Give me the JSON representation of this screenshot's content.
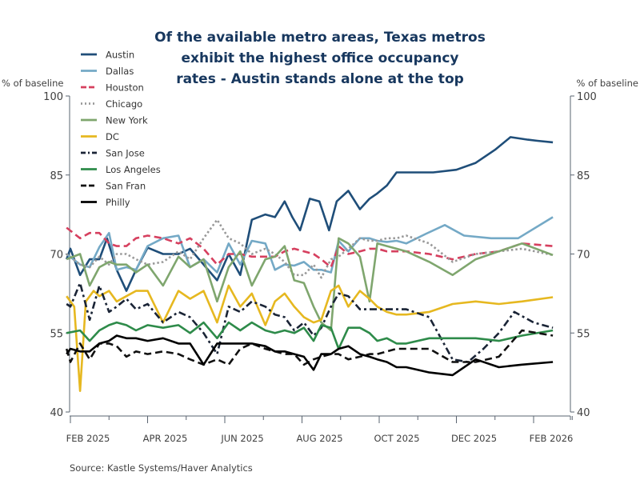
{
  "chart_data": {
    "type": "line",
    "title": [
      "Of the available metro areas, Texas metros",
      "exhibit the highest office occupancy",
      "rates - Austin stands alone at the top"
    ],
    "ylabel_left": "% of baseline",
    "ylabel_right": "% of baseline",
    "ylim": [
      40,
      100
    ],
    "yticks": [
      40,
      55,
      70,
      85,
      100
    ],
    "ytick_labels": [
      "40",
      "55",
      "70",
      "85",
      "100"
    ],
    "x_range": [
      0,
      13.5
    ],
    "xtick_labels": [
      {
        "label": "FEB 2025",
        "x": 0
      },
      {
        "label": "APR 2025",
        "x": 2
      },
      {
        "label": "JUN 2025",
        "x": 4
      },
      {
        "label": "AUG 2025",
        "x": 6
      },
      {
        "label": "OCT 2025",
        "x": 8
      },
      {
        "label": "DEC 2025",
        "x": 10
      },
      {
        "label": "FEB 2026",
        "x": 12
      }
    ],
    "minor_ticks": [
      0,
      1,
      2,
      3,
      4,
      5,
      6,
      7,
      8,
      9,
      10,
      11,
      12,
      13
    ],
    "source": "Source:  Kastle Systems/Haver Analytics",
    "grid": false,
    "legend_position": "top-left",
    "series": [
      {
        "name": "Austin",
        "color": "#1f4e79",
        "dash": "solid",
        "x": [
          -0.1,
          0.0,
          0.25,
          0.5,
          0.75,
          0.95,
          1.2,
          1.45,
          1.7,
          2.0,
          2.4,
          2.8,
          3.1,
          3.45,
          3.8,
          4.1,
          4.4,
          4.7,
          5.05,
          5.3,
          5.55,
          5.75,
          5.95,
          6.2,
          6.45,
          6.7,
          6.9,
          7.2,
          7.5,
          7.75,
          7.95,
          8.2,
          8.45,
          8.7,
          9.4,
          10.0,
          10.5,
          11.0,
          11.4,
          11.85,
          12.1,
          12.5
        ],
        "y": [
          69,
          71,
          66,
          69,
          69,
          73,
          67,
          63,
          67,
          71.2,
          70,
          70,
          71,
          68,
          65,
          70,
          66,
          76.5,
          77.5,
          77,
          80,
          77,
          74.5,
          80.5,
          80,
          74.5,
          80,
          82,
          78.5,
          80.5,
          81.5,
          83,
          85.5,
          85.5,
          85.5,
          86,
          87.3,
          89.8,
          92.2,
          91.7,
          91.5,
          91.2
        ]
      },
      {
        "name": "Dallas",
        "color": "#74a9c6",
        "dash": "solid",
        "x": [
          -0.1,
          0.25,
          0.5,
          0.75,
          1.0,
          1.2,
          1.45,
          1.7,
          2.0,
          2.4,
          2.8,
          3.1,
          3.45,
          3.8,
          4.1,
          4.4,
          4.7,
          5.05,
          5.3,
          5.55,
          5.8,
          6.05,
          6.3,
          6.5,
          6.75,
          6.95,
          7.2,
          7.5,
          7.75,
          7.95,
          8.2,
          8.45,
          8.7,
          9.2,
          9.7,
          10.2,
          10.9,
          11.6,
          12.5
        ],
        "y": [
          70,
          68,
          67.5,
          71.3,
          74,
          67,
          67.5,
          67,
          71.5,
          73,
          73.5,
          67.5,
          69,
          66.5,
          72,
          68,
          72.5,
          72,
          67,
          68,
          67.8,
          68.5,
          67,
          67,
          66.5,
          72.5,
          70.5,
          73,
          73,
          72.5,
          72.3,
          72.5,
          72,
          73.8,
          75.5,
          73.5,
          73,
          73,
          77
        ]
      },
      {
        "name": "Houston",
        "color": "#d6405f",
        "dash": "dashed",
        "x": [
          -0.1,
          0.25,
          0.5,
          0.75,
          1.0,
          1.2,
          1.45,
          1.7,
          2.0,
          2.4,
          2.8,
          3.1,
          3.45,
          3.8,
          4.1,
          4.4,
          4.7,
          5.05,
          5.3,
          5.55,
          5.8,
          6.05,
          6.3,
          6.5,
          6.75,
          6.95,
          7.2,
          7.5,
          7.75,
          7.95,
          8.2,
          8.45,
          8.7,
          9.3,
          9.9,
          10.5,
          11.1,
          11.7,
          12.5
        ],
        "y": [
          75,
          73,
          74,
          74,
          72,
          71.5,
          71.5,
          73,
          73.5,
          73,
          72,
          73,
          71,
          68,
          70,
          70,
          69.5,
          69.5,
          69.5,
          70.5,
          71,
          70.5,
          70,
          69,
          67.5,
          71.5,
          70,
          70.5,
          71,
          71,
          70.5,
          70.5,
          70.5,
          70,
          69,
          70,
          70.5,
          72,
          71.5
        ]
      },
      {
        "name": "Chicago",
        "color": "#999999",
        "dash": "dotted",
        "x": [
          -0.1,
          0.25,
          0.5,
          0.75,
          1.0,
          1.2,
          1.45,
          1.7,
          2.0,
          2.4,
          2.8,
          3.1,
          3.45,
          3.8,
          4.1,
          4.4,
          4.7,
          5.05,
          5.3,
          5.55,
          5.8,
          6.05,
          6.3,
          6.5,
          6.75,
          6.95,
          7.2,
          7.5,
          7.75,
          7.95,
          8.2,
          8.45,
          8.7,
          9.3,
          9.9,
          10.5,
          11.1,
          11.7,
          12.5
        ],
        "y": [
          70,
          68,
          67.5,
          69.5,
          68,
          70,
          70,
          69,
          68,
          68.5,
          70.5,
          69,
          73,
          76.5,
          73,
          72,
          70,
          71,
          70,
          68.5,
          66,
          66,
          68,
          65.5,
          69,
          69.5,
          71,
          73,
          72.5,
          72.5,
          73,
          73,
          73.5,
          72,
          68.5,
          70,
          70.5,
          71,
          69.8
        ]
      },
      {
        "name": "New York",
        "color": "#7fa66e",
        "dash": "solid",
        "x": [
          -0.1,
          0.25,
          0.5,
          0.75,
          1.0,
          1.2,
          1.45,
          1.7,
          2.0,
          2.4,
          2.8,
          3.1,
          3.45,
          3.8,
          4.1,
          4.4,
          4.7,
          5.05,
          5.3,
          5.55,
          5.8,
          6.05,
          6.3,
          6.5,
          6.75,
          6.95,
          7.2,
          7.5,
          7.75,
          7.95,
          8.2,
          8.45,
          8.7,
          9.3,
          9.9,
          10.5,
          11.1,
          11.7,
          12.5
        ],
        "y": [
          69,
          70,
          64,
          67.5,
          68.5,
          68,
          68,
          66.5,
          68,
          64,
          69.5,
          67.5,
          69,
          61,
          67.5,
          70.5,
          64,
          69,
          69.5,
          71.5,
          65,
          64.5,
          60,
          57,
          55.5,
          73,
          72,
          69.5,
          61,
          72,
          71.5,
          71,
          70.5,
          68.5,
          66,
          69,
          70.5,
          72,
          69.8
        ]
      },
      {
        "name": "DC",
        "color": "#e6b820",
        "dash": "solid",
        "x": [
          -0.1,
          0.1,
          0.25,
          0.4,
          0.6,
          0.75,
          1.0,
          1.2,
          1.45,
          1.7,
          2.0,
          2.4,
          2.8,
          3.1,
          3.45,
          3.8,
          4.1,
          4.4,
          4.7,
          5.05,
          5.3,
          5.55,
          5.8,
          6.05,
          6.3,
          6.5,
          6.75,
          6.95,
          7.2,
          7.5,
          7.75,
          7.95,
          8.2,
          8.45,
          8.7,
          9.3,
          9.9,
          10.5,
          11.1,
          11.7,
          12.5
        ],
        "y": [
          62,
          60,
          44,
          61,
          63,
          62,
          63,
          61,
          62,
          63,
          63,
          57,
          63,
          61.5,
          63,
          57,
          64,
          60,
          62.5,
          56.5,
          61,
          62.5,
          60,
          58,
          57,
          57.5,
          63,
          64,
          60,
          63,
          61.5,
          60,
          59,
          58.5,
          58.5,
          59,
          60.5,
          61,
          60.5,
          61,
          61.8
        ]
      },
      {
        "name": "San Jose",
        "color": "#1a2436",
        "dash": "dashdot",
        "x": [
          -0.1,
          0.0,
          0.25,
          0.5,
          0.75,
          1.0,
          1.2,
          1.45,
          1.7,
          2.0,
          2.4,
          2.8,
          3.1,
          3.45,
          3.8,
          4.1,
          4.4,
          4.7,
          5.05,
          5.3,
          5.55,
          5.8,
          6.05,
          6.3,
          6.5,
          6.75,
          6.95,
          7.2,
          7.5,
          7.75,
          7.95,
          8.2,
          8.45,
          8.7,
          9.3,
          9.9,
          10.3,
          10.7,
          11.1,
          11.5,
          12.0,
          12.5
        ],
        "y": [
          60.5,
          60,
          64.5,
          57.5,
          64,
          59,
          60,
          61.5,
          59.5,
          60.5,
          57,
          59,
          58,
          55,
          51,
          60,
          59,
          61,
          60,
          58.5,
          58,
          55.5,
          57,
          54.5,
          56,
          60,
          62.5,
          62,
          59.5,
          59.5,
          59.5,
          59.5,
          59.5,
          59.5,
          58,
          50,
          49.5,
          52,
          55,
          59,
          57,
          56
        ]
      },
      {
        "name": "Los Angeles",
        "color": "#2e8b4a",
        "dash": "solid",
        "x": [
          -0.1,
          0.25,
          0.5,
          0.75,
          1.0,
          1.2,
          1.45,
          1.7,
          2.0,
          2.4,
          2.8,
          3.1,
          3.45,
          3.8,
          4.1,
          4.4,
          4.7,
          5.05,
          5.3,
          5.55,
          5.8,
          6.05,
          6.3,
          6.5,
          6.75,
          6.95,
          7.2,
          7.5,
          7.75,
          7.95,
          8.2,
          8.45,
          8.7,
          9.3,
          9.9,
          10.5,
          11.1,
          11.7,
          12.5
        ],
        "y": [
          55,
          55.5,
          53.5,
          55.5,
          56.5,
          57,
          56.5,
          55.5,
          56.5,
          56,
          56.5,
          55,
          57,
          54,
          57,
          55.5,
          57,
          55.5,
          55,
          55.5,
          55,
          56,
          53.5,
          56.5,
          56,
          52,
          56,
          56,
          55,
          53.5,
          54,
          53,
          53,
          54,
          54,
          54,
          53.5,
          54.5,
          55.5
        ]
      },
      {
        "name": "San Fran",
        "color": "#111111",
        "dash": "dashed",
        "x": [
          -0.1,
          0.0,
          0.25,
          0.5,
          0.75,
          1.0,
          1.2,
          1.45,
          1.7,
          2.0,
          2.4,
          2.8,
          3.1,
          3.45,
          3.8,
          4.1,
          4.4,
          4.7,
          5.05,
          5.3,
          5.55,
          5.8,
          6.05,
          6.3,
          6.5,
          6.75,
          6.95,
          7.2,
          7.5,
          7.75,
          7.95,
          8.2,
          8.45,
          8.7,
          9.3,
          9.9,
          10.5,
          11.1,
          11.7,
          12.5
        ],
        "y": [
          52,
          49.5,
          53,
          50,
          53,
          53,
          52.5,
          50.5,
          51.5,
          51,
          51.5,
          51,
          50,
          49,
          50,
          49,
          52,
          53,
          52,
          51.5,
          51,
          51,
          49,
          50,
          50.5,
          51,
          51,
          50,
          50.5,
          51,
          51,
          51.5,
          52,
          52,
          52,
          49.5,
          49.5,
          50.5,
          55.5,
          54.5
        ]
      },
      {
        "name": "Philly",
        "color": "#000000",
        "dash": "solid",
        "x": [
          -0.1,
          0.0,
          0.25,
          0.5,
          0.75,
          1.0,
          1.2,
          1.45,
          1.7,
          2.0,
          2.4,
          2.8,
          3.1,
          3.45,
          3.8,
          4.1,
          4.4,
          4.7,
          5.05,
          5.3,
          5.55,
          5.8,
          6.05,
          6.3,
          6.5,
          6.75,
          6.95,
          7.2,
          7.5,
          7.75,
          7.95,
          8.2,
          8.45,
          8.7,
          9.3,
          9.9,
          10.5,
          11.1,
          11.7,
          12.5
        ],
        "y": [
          51,
          52,
          51.5,
          51.5,
          53,
          53.5,
          54.5,
          54,
          54,
          53.5,
          54,
          53,
          53,
          49,
          53,
          53,
          53,
          53,
          52.5,
          51.5,
          51.5,
          51,
          50.5,
          48,
          51,
          51,
          52,
          52.5,
          51,
          50.5,
          50,
          49.5,
          48.5,
          48.5,
          47.5,
          47,
          50,
          48.5,
          49,
          49.5
        ]
      }
    ]
  }
}
